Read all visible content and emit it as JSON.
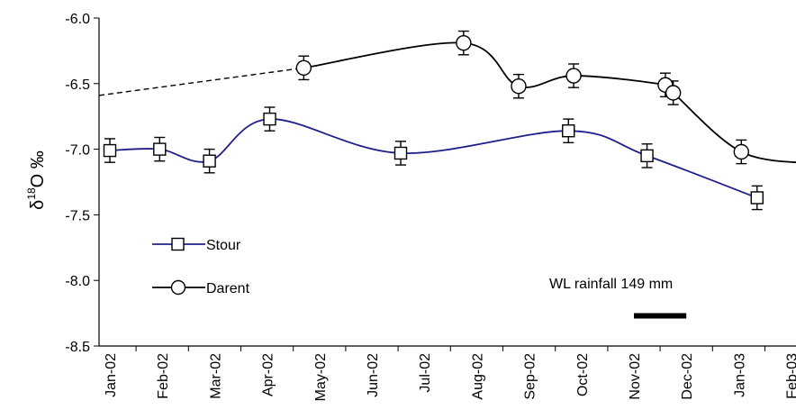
{
  "chart_data": {
    "type": "line",
    "title": "",
    "xlabel": "",
    "ylabel": {
      "prefix": "δ",
      "superscript": "18",
      "suffix": "O ‰"
    },
    "y_tick_labels": [
      "-6.0",
      "-6.5",
      "-7.0",
      "-7.5",
      "-8.0",
      "-8.5"
    ],
    "x_tick_labels": [
      "Jan-02",
      "Feb-02",
      "Mar-02",
      "Apr-02",
      "May-02",
      "Jun-02",
      "Jul-02",
      "Aug-02",
      "Sep-02",
      "Oct-02",
      "Nov-02",
      "Dec-02",
      "Jan-03",
      "Feb-03"
    ],
    "ylim": [
      -8.5,
      -6.0
    ],
    "x_index_range": [
      0,
      13.5
    ],
    "grid": false,
    "legend_position": "lower-left",
    "series": [
      {
        "name": "Stour",
        "marker": "square",
        "color": "#1f1f8c",
        "error": 0.09,
        "points": [
          {
            "x": 0.0,
            "y": -7.01
          },
          {
            "x": 0.95,
            "y": -7.0
          },
          {
            "x": 1.9,
            "y": -7.09
          },
          {
            "x": 3.05,
            "y": -6.77
          },
          {
            "x": 5.55,
            "y": -7.03
          },
          {
            "x": 8.75,
            "y": -6.86
          },
          {
            "x": 10.25,
            "y": -7.05
          },
          {
            "x": 12.35,
            "y": -7.37
          }
        ]
      },
      {
        "name": "Darent",
        "marker": "circle",
        "color": "#000000",
        "error": 0.09,
        "dashed_start_y": -6.59,
        "points": [
          {
            "x": 3.7,
            "y": -6.38
          },
          {
            "x": 6.75,
            "y": -6.19
          },
          {
            "x": 7.8,
            "y": -6.52
          },
          {
            "x": 8.85,
            "y": -6.44
          },
          {
            "x": 10.6,
            "y": -6.51
          },
          {
            "x": 10.75,
            "y": -6.57
          },
          {
            "x": 12.05,
            "y": -7.02
          },
          {
            "x": 13.45,
            "y": -7.11
          }
        ]
      }
    ],
    "annotations": [
      {
        "text": "WL rainfall 149 mm",
        "bar_from_x": 10.0,
        "bar_to_x": 11.0,
        "bar_y": -8.27
      }
    ]
  }
}
